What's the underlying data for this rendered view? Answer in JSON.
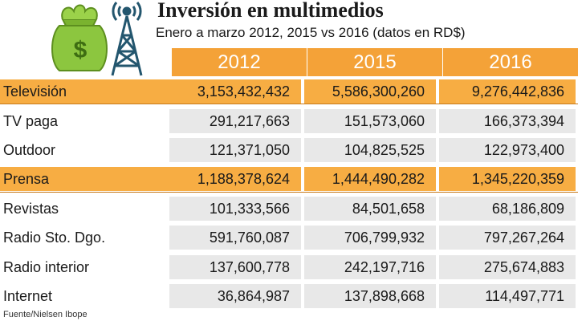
{
  "title": "Inversión en multimedios",
  "subtitle": "Enero a marzo 2012, 2015 vs 2016 (datos en RD$)",
  "source": "Fuente/Nielsen Ibope",
  "logo": {
    "icons": [
      "money-bag-icon",
      "radio-tower-icon"
    ],
    "bag_symbol": "$"
  },
  "colors": {
    "header": "#f4a238",
    "highlight_row": "#f7ad43",
    "cell_bg": "#e8e8e8",
    "money_bag": "#8cc63f"
  },
  "chart_data": {
    "type": "table",
    "columns": [
      "2012",
      "2015",
      "2016"
    ],
    "rows": [
      {
        "label": "Televisión",
        "values": [
          "3,153,432,432",
          "5,586,300,260",
          "9,276,442,836"
        ],
        "highlight": true
      },
      {
        "label": "TV paga",
        "values": [
          "291,217,663",
          "151,573,060",
          "166,373,394"
        ],
        "highlight": false
      },
      {
        "label": "Outdoor",
        "values": [
          "121,371,050",
          "104,825,525",
          "122,973,400"
        ],
        "highlight": false
      },
      {
        "label": "Prensa",
        "values": [
          "1,188,378,624",
          "1,444,490,282",
          "1,345,220,359"
        ],
        "highlight": true
      },
      {
        "label": "Revistas",
        "values": [
          "101,333,566",
          "84,501,658",
          "68,186,809"
        ],
        "highlight": false
      },
      {
        "label": "Radio Sto. Dgo.",
        "values": [
          "591,760,087",
          "706,799,932",
          "797,267,264"
        ],
        "highlight": false
      },
      {
        "label": "Radio interior",
        "values": [
          "137,600,778",
          "242,197,716",
          "275,674,883"
        ],
        "highlight": false
      },
      {
        "label": "Internet",
        "values": [
          "36,864,987",
          "137,898,668",
          "114,497,771"
        ],
        "highlight": false
      }
    ]
  }
}
